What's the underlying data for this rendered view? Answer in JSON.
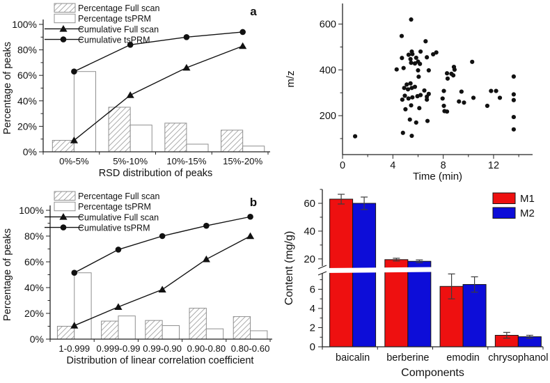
{
  "figure": {
    "background": "#ffffff",
    "axis_color": "#222222",
    "hatch_color": "#8f8f8f",
    "marker_color": "#111111"
  },
  "chart_data": [
    {
      "id": "panel-a",
      "type": "bar-line-pareto",
      "panel_label": "a",
      "xlabel": "RSD distribution of peaks",
      "ylabel": "Percentage of peaks",
      "categories": [
        "0%-5%",
        "5%-10%",
        "10%-15%",
        "15%-20%"
      ],
      "ylim": [
        0,
        100
      ],
      "ytick_labels": [
        "0%",
        "20%",
        "40%",
        "60%",
        "80%",
        "100%"
      ],
      "legend_position": "top-left",
      "series": [
        {
          "name": "Percentage Full scan",
          "kind": "bar",
          "fill": "hatched",
          "values": [
            9,
            35,
            22.5,
            17
          ]
        },
        {
          "name": "Percentage tsPRM",
          "kind": "bar",
          "fill": "white",
          "values": [
            63,
            21,
            6,
            4.5
          ]
        },
        {
          "name": "Cumulative Full scan",
          "kind": "line",
          "marker": "triangle",
          "values": [
            9,
            44.5,
            66,
            83
          ]
        },
        {
          "name": "Cumulative tsPRM",
          "kind": "line",
          "marker": "circle",
          "values": [
            63,
            84,
            90,
            94
          ]
        }
      ]
    },
    {
      "id": "panel-mz",
      "type": "scatter",
      "xlabel": "Time (min)",
      "ylabel": "m/z",
      "xlim": [
        0,
        15.1
      ],
      "ylim": [
        30,
        690
      ],
      "xticks": [
        0,
        4,
        8,
        12
      ],
      "xminor": [
        2,
        6,
        10,
        14
      ],
      "yticks": [
        200,
        400,
        600
      ],
      "yminor": [
        100,
        300,
        500
      ],
      "points": [
        [
          1.0,
          110
        ],
        [
          4.3,
          402
        ],
        [
          4.7,
          548
        ],
        [
          4.8,
          125
        ],
        [
          4.72,
          452
        ],
        [
          4.75,
          270
        ],
        [
          4.85,
          408
        ],
        [
          4.9,
          321
        ],
        [
          4.95,
          287
        ],
        [
          5.0,
          228
        ],
        [
          5.1,
          336
        ],
        [
          5.2,
          315
        ],
        [
          5.24,
          275
        ],
        [
          5.25,
          466
        ],
        [
          5.35,
          183
        ],
        [
          5.4,
          447
        ],
        [
          5.4,
          341
        ],
        [
          5.45,
          620
        ],
        [
          5.45,
          431
        ],
        [
          5.45,
          245
        ],
        [
          5.5,
          480
        ],
        [
          5.5,
          321
        ],
        [
          5.5,
          112
        ],
        [
          5.55,
          469
        ],
        [
          5.55,
          280
        ],
        [
          5.75,
          428
        ],
        [
          5.75,
          326
        ],
        [
          5.85,
          453
        ],
        [
          5.85,
          170
        ],
        [
          5.95,
          285
        ],
        [
          6.0,
          436
        ],
        [
          6.0,
          398
        ],
        [
          6.05,
          370
        ],
        [
          6.1,
          233
        ],
        [
          6.15,
          426
        ],
        [
          6.2,
          480
        ],
        [
          6.2,
          290
        ],
        [
          6.5,
          310
        ],
        [
          6.6,
          525
        ],
        [
          6.7,
          455
        ],
        [
          6.7,
          283
        ],
        [
          6.7,
          270
        ],
        [
          6.75,
          177
        ],
        [
          6.85,
          398
        ],
        [
          6.85,
          295
        ],
        [
          7.2,
          468
        ],
        [
          7.45,
          476
        ],
        [
          7.95,
          275
        ],
        [
          8.05,
          308
        ],
        [
          8.05,
          243
        ],
        [
          8.1,
          220
        ],
        [
          8.3,
          218
        ],
        [
          8.3,
          385
        ],
        [
          8.35,
          362
        ],
        [
          8.65,
          383
        ],
        [
          8.8,
          376
        ],
        [
          8.85,
          413
        ],
        [
          8.9,
          401
        ],
        [
          9.25,
          262
        ],
        [
          9.45,
          305
        ],
        [
          9.65,
          257
        ],
        [
          10.3,
          435
        ],
        [
          10.4,
          278
        ],
        [
          11.5,
          243
        ],
        [
          11.8,
          308
        ],
        [
          12.2,
          308
        ],
        [
          12.5,
          278
        ],
        [
          13.6,
          371
        ],
        [
          13.6,
          293
        ],
        [
          13.6,
          268
        ],
        [
          13.6,
          194
        ],
        [
          13.6,
          140
        ]
      ]
    },
    {
      "id": "panel-b",
      "type": "bar-line-pareto",
      "panel_label": "b",
      "xlabel": "Distribution of linear correlation coefficient",
      "ylabel": "Percentage of peaks",
      "categories": [
        "1-0.999",
        "0.999-0.99",
        "0.99-0.90",
        "0.90-0.80",
        "0.80-0.60"
      ],
      "ylim": [
        0,
        100
      ],
      "ytick_labels": [
        "0%",
        "20%",
        "40%",
        "60%",
        "80%",
        "100%"
      ],
      "legend_position": "top-left",
      "series": [
        {
          "name": "Percentage Full scan",
          "kind": "bar",
          "fill": "hatched",
          "values": [
            10,
            14,
            14.5,
            24,
            17.5
          ]
        },
        {
          "name": "Percentage tsPRM",
          "kind": "bar",
          "fill": "white",
          "values": [
            51.5,
            18,
            10.5,
            8,
            6.5
          ]
        },
        {
          "name": "Cumulative Full scan",
          "kind": "line",
          "marker": "triangle",
          "values": [
            10.5,
            25,
            38.5,
            62,
            80
          ]
        },
        {
          "name": "Cumulative tsPRM",
          "kind": "line",
          "marker": "circle",
          "values": [
            51.5,
            69.5,
            80,
            88,
            95
          ]
        }
      ]
    },
    {
      "id": "panel-content",
      "type": "grouped-bar-broken-axis",
      "xlabel": "Components",
      "ylabel": "Content (mg/g)",
      "categories": [
        "baicalin",
        "berberine",
        "emodin",
        "chrysophanol"
      ],
      "axis_break": {
        "lower_max": 7.7,
        "upper_min": 13.4
      },
      "upper_max": 70,
      "lower_ticks": [
        0,
        2,
        4,
        6
      ],
      "lower_minor": [
        1,
        3,
        5,
        7
      ],
      "upper_ticks": [
        20,
        40,
        60
      ],
      "upper_minor": [
        30,
        50,
        70
      ],
      "legend_position": "top-right",
      "series": [
        {
          "name": "M1",
          "color": "#ee1010",
          "values": [
            63,
            19.5,
            6.3,
            1.2
          ],
          "errors": [
            3.5,
            1,
            1.3,
            0.3
          ]
        },
        {
          "name": "M2",
          "color": "#0d0dd8",
          "values": [
            60,
            18.3,
            6.5,
            1.05
          ],
          "errors": [
            4.5,
            1,
            0.8,
            0.15
          ]
        }
      ]
    }
  ]
}
